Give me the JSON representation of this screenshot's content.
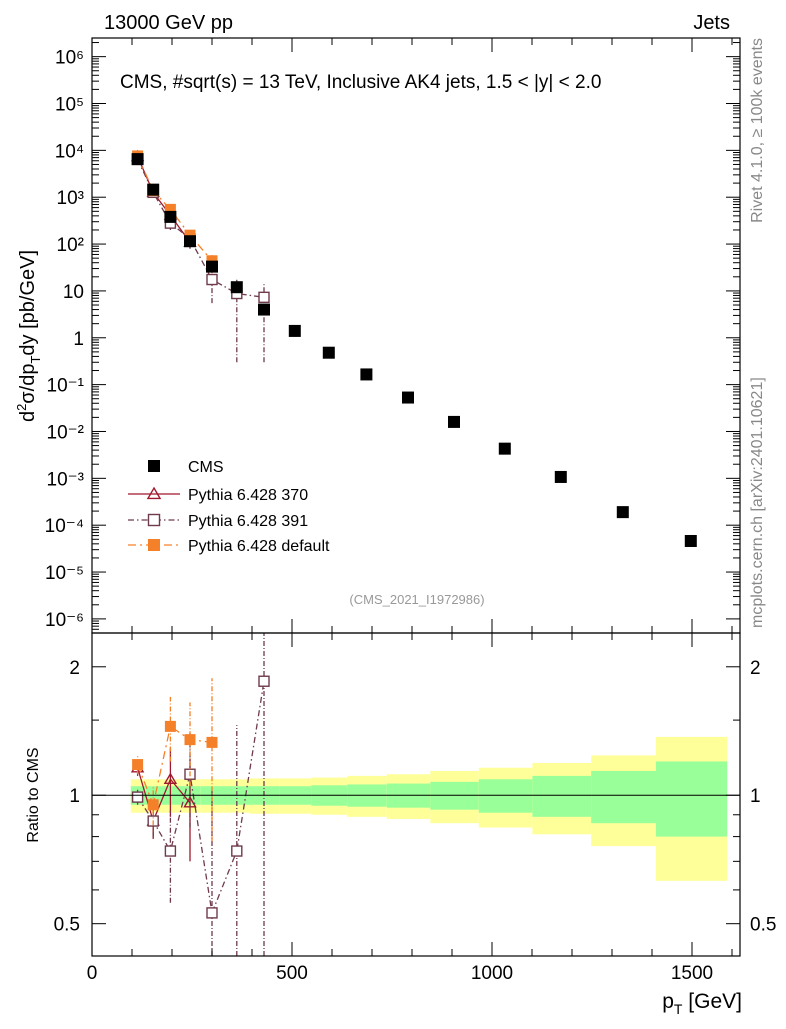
{
  "header": {
    "left": "13000 GeV pp",
    "right": "Jets",
    "side_rivet": "Rivet 4.1.0, ≥ 100k events",
    "side_mcplots": "mcplots.cern.ch [arXiv:2401.10621]"
  },
  "chart_data": [
    {
      "panel": "main",
      "type": "scatter",
      "title": "CMS, #sqrt(s) = 13 TeV, Inclusive AK4 jets, 1.5 < |y| < 2.0",
      "ylabel": "d²σ/dp_T dy [pb/GeV]",
      "ylabel_parts": {
        "a": "d",
        "a_sup": "2",
        "b": "σ/dp",
        "b_sub": "T",
        "c": "dy [pb/GeV]"
      },
      "yscale": "log",
      "xlim": [
        0,
        1620
      ],
      "ylim": [
        5e-07,
        2500000.0
      ],
      "ytick_labels": [
        "10⁻⁶",
        "10⁻⁵",
        "10⁻⁴",
        "10⁻³",
        "10⁻²",
        "10⁻¹",
        "1",
        "10",
        "10²",
        "10³",
        "10⁴",
        "10⁵",
        "10⁶"
      ],
      "watermark": "(CMS_2021_I1972986)",
      "legend": {
        "position": "lower-left",
        "entries": [
          "CMS",
          "Pythia 6.428 370",
          "Pythia 6.428 391",
          "Pythia 6.428 default"
        ]
      },
      "series": [
        {
          "name": "CMS",
          "color": "#000000",
          "marker": "filled-square",
          "x": [
            114,
            153,
            196,
            245,
            300,
            362,
            430,
            507,
            592,
            686,
            790,
            905,
            1032,
            1172,
            1327,
            1497
          ],
          "y": [
            6500,
            1450,
            380,
            115,
            33,
            12,
            4.0,
            1.4,
            0.48,
            0.165,
            0.053,
            0.016,
            0.0043,
            0.00107,
            0.00019,
            4.6e-05
          ]
        },
        {
          "name": "Pythia 6.428 370",
          "color": "#a0182d",
          "marker": "open-triangle",
          "x": [
            114,
            153,
            196,
            245
          ],
          "y": [
            7400,
            1270,
            410,
            110
          ],
          "yerr": [
            1100,
            220,
            90,
            30
          ]
        },
        {
          "name": "Pythia 6.428 391",
          "color": "#6e3a4c",
          "marker": "open-square",
          "x": [
            114,
            153,
            196,
            245,
            300,
            362,
            430
          ],
          "y": [
            6400,
            1270,
            280,
            130,
            17.5,
            8.8,
            7.3
          ],
          "yerr": [
            900,
            220,
            80,
            50,
            12,
            8.5,
            7.0
          ]
        },
        {
          "name": "Pythia 6.428 default",
          "color": "#f5802a",
          "marker": "filled-square",
          "x": [
            114,
            153,
            196,
            245,
            300
          ],
          "y": [
            7600,
            1380,
            550,
            155,
            44
          ],
          "yerr": [
            1200,
            250,
            120,
            40,
            20
          ]
        }
      ]
    },
    {
      "panel": "ratio",
      "type": "scatter",
      "ylabel": "Ratio to CMS",
      "xlabel": "p_T [GeV]",
      "xlabel_parts": {
        "a": "p",
        "a_sub": "T",
        "b": " [GeV]"
      },
      "yscale": "log",
      "xlim": [
        0,
        1620
      ],
      "ylim": [
        0.42,
        2.4
      ],
      "xtick_labels": [
        "0",
        "500",
        "1000",
        "1500"
      ],
      "ytick_labels": [
        "0.5",
        "1",
        "2"
      ],
      "bands": [
        {
          "x0": 97,
          "x1": 133,
          "green": 0.05,
          "yellow": 0.09
        },
        {
          "x0": 133,
          "x1": 174,
          "green": 0.05,
          "yellow": 0.09
        },
        {
          "x0": 174,
          "x1": 220,
          "green": 0.05,
          "yellow": 0.09
        },
        {
          "x0": 220,
          "x1": 272,
          "green": 0.05,
          "yellow": 0.09
        },
        {
          "x0": 272,
          "x1": 330,
          "green": 0.05,
          "yellow": 0.09
        },
        {
          "x0": 330,
          "x1": 395,
          "green": 0.05,
          "yellow": 0.09
        },
        {
          "x0": 395,
          "x1": 468,
          "green": 0.05,
          "yellow": 0.095
        },
        {
          "x0": 468,
          "x1": 548,
          "green": 0.05,
          "yellow": 0.095
        },
        {
          "x0": 548,
          "x1": 638,
          "green": 0.055,
          "yellow": 0.1
        },
        {
          "x0": 638,
          "x1": 737,
          "green": 0.06,
          "yellow": 0.11
        },
        {
          "x0": 737,
          "x1": 846,
          "green": 0.065,
          "yellow": 0.12
        },
        {
          "x0": 846,
          "x1": 967,
          "green": 0.075,
          "yellow": 0.14
        },
        {
          "x0": 967,
          "x1": 1101,
          "green": 0.09,
          "yellow": 0.16
        },
        {
          "x0": 1101,
          "x1": 1248,
          "green": 0.11,
          "yellow": 0.19
        },
        {
          "x0": 1248,
          "x1": 1410,
          "green": 0.14,
          "yellow": 0.24
        },
        {
          "x0": 1410,
          "x1": 1588,
          "green": 0.2,
          "yellow": 0.37
        }
      ],
      "series": [
        {
          "name": "Pythia 6.428 370",
          "color": "#a0182d",
          "marker": "open-triangle",
          "x": [
            114,
            153,
            196,
            245
          ],
          "y": [
            1.16,
            0.87,
            1.09,
            0.96
          ],
          "yerr": [
            0.05,
            0.08,
            0.2,
            0.26
          ]
        },
        {
          "name": "Pythia 6.428 391",
          "color": "#6e3a4c",
          "marker": "open-square",
          "x": [
            114,
            153,
            196,
            245,
            300,
            362,
            430
          ],
          "y": [
            0.99,
            0.87,
            0.74,
            1.12,
            0.53,
            0.74,
            1.85
          ],
          "yerr": [
            0.04,
            0.07,
            0.18,
            0.28,
            0.5,
            0.72,
            1.5
          ]
        },
        {
          "name": "Pythia 6.428 default",
          "color": "#f5802a",
          "marker": "filled-square",
          "x": [
            114,
            153,
            196,
            245,
            300
          ],
          "y": [
            1.18,
            0.95,
            1.45,
            1.35,
            1.33
          ],
          "yerr": [
            0.06,
            0.1,
            0.25,
            0.3,
            0.55
          ]
        }
      ]
    }
  ]
}
